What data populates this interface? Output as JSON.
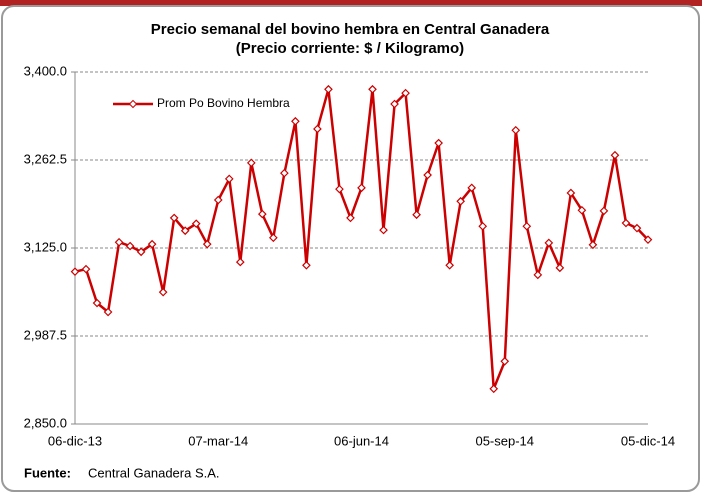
{
  "chart_data": {
    "type": "line",
    "title": "Precio semanal del bovino  hembra en Central Ganadera",
    "subtitle": "(Precio corriente: $ / Kilogramo)",
    "categories": [
      "06-dic-13",
      null,
      null,
      null,
      null,
      null,
      null,
      null,
      null,
      null,
      null,
      null,
      null,
      "07-mar-14",
      null,
      null,
      null,
      null,
      null,
      null,
      null,
      null,
      null,
      null,
      null,
      null,
      "06-jun-14",
      null,
      null,
      null,
      null,
      null,
      null,
      null,
      null,
      null,
      null,
      null,
      null,
      "05-sep-14",
      null,
      null,
      null,
      null,
      null,
      null,
      null,
      null,
      null,
      null,
      null,
      null,
      "05-dic-14"
    ],
    "series": [
      {
        "name": "Prom Po Bovino Hembra",
        "color": "#cc0000",
        "values": [
          3088,
          3092,
          3039,
          3025,
          3134,
          3128,
          3119,
          3131,
          3056,
          3172,
          3152,
          3163,
          3131,
          3200,
          3233,
          3103,
          3258,
          3178,
          3141,
          3242,
          3323,
          3098,
          3311,
          3373,
          3217,
          3172,
          3219,
          3373,
          3153,
          3350,
          3367,
          3177,
          3239,
          3289,
          3098,
          3198,
          3219,
          3159,
          2905,
          2948,
          3309,
          3159,
          3083,
          3133,
          3094,
          3211,
          3184,
          3130,
          3183,
          3270,
          3164,
          3156,
          3138
        ]
      }
    ],
    "ylim": [
      2850,
      3400
    ],
    "yticks": [
      {
        "value": 2850,
        "label": "2,850.0"
      },
      {
        "value": 2987.5,
        "label": "2,987.5"
      },
      {
        "value": 3125,
        "label": "3,125.0"
      },
      {
        "value": 3262.5,
        "label": "3,262.5"
      },
      {
        "value": 3400,
        "label": "3,400.0"
      }
    ],
    "grid": true,
    "legend": "top-left",
    "source_label": "Fuente:",
    "source": "Central Ganadera S.A."
  }
}
